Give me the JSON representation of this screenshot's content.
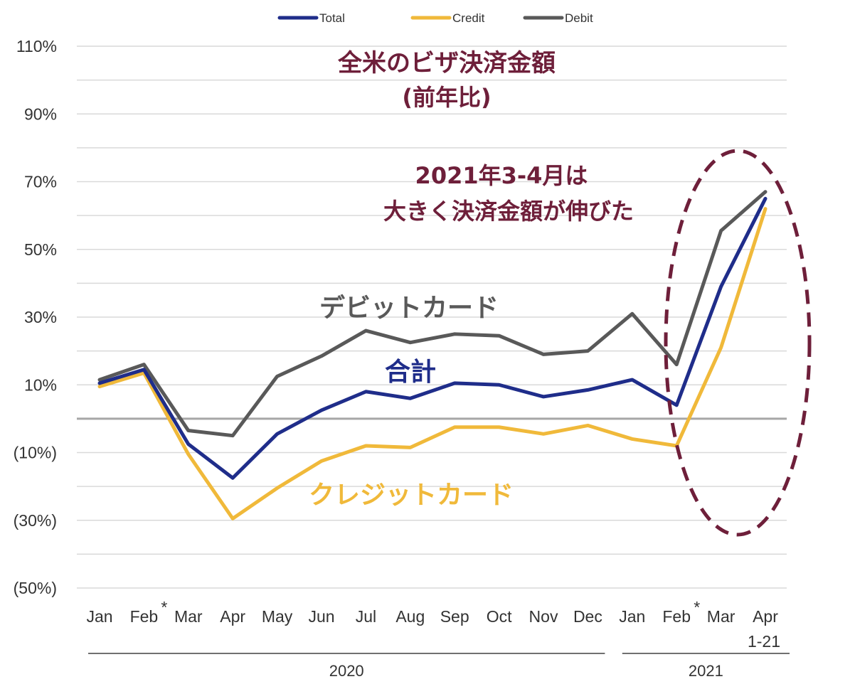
{
  "chart_data": {
    "type": "line",
    "title": "全米のビザ決済金額",
    "subtitle": "(前年比)",
    "annotation": {
      "line1": "2021年3-4月は",
      "line2": "大きく決済金額が伸びた"
    },
    "x": [
      "Jan",
      "Feb",
      "Mar",
      "Apr",
      "May",
      "Jun",
      "Jul",
      "Aug",
      "Sep",
      "Oct",
      "Nov",
      "Dec",
      "Jan",
      "Feb",
      "Mar",
      "Apr"
    ],
    "x_marks": {
      "1": "*",
      "13": "*"
    },
    "x_sublabel": {
      "15": "1-21"
    },
    "groups": [
      {
        "label": "2020",
        "from": 0,
        "to": 11
      },
      {
        "label": "2021",
        "from": 12,
        "to": 15
      }
    ],
    "y_ticks": [
      {
        "value": 110,
        "label": "110%"
      },
      {
        "value": 90,
        "label": "90%"
      },
      {
        "value": 70,
        "label": "70%"
      },
      {
        "value": 50,
        "label": "50%"
      },
      {
        "value": 30,
        "label": "30%"
      },
      {
        "value": 10,
        "label": "10%"
      },
      {
        "value": -10,
        "label": "(10%)"
      },
      {
        "value": -30,
        "label": "(30%)"
      },
      {
        "value": -50,
        "label": "(50%)"
      }
    ],
    "ylim": [
      -50,
      110
    ],
    "grid_step": 10,
    "series": [
      {
        "name": "Total",
        "label": "合計",
        "color": "#1f2d8a",
        "values": [
          10.5,
          14.5,
          -7.5,
          -17.5,
          -4.5,
          2.5,
          8,
          6,
          10.5,
          10,
          6.5,
          8.5,
          11.5,
          4,
          39,
          65
        ]
      },
      {
        "name": "Credit",
        "label": "クレジットカード",
        "color": "#f0b93a",
        "values": [
          9.5,
          13.5,
          -10.5,
          -29.5,
          -20.5,
          -12.5,
          -8,
          -8.5,
          -2.5,
          -2.5,
          -4.5,
          -2,
          -6,
          -8,
          21,
          62
        ]
      },
      {
        "name": "Debit",
        "label": "デビットカード",
        "color": "#595959",
        "values": [
          11.5,
          16,
          -3.5,
          -5,
          12.5,
          18.5,
          26,
          22.5,
          25,
          24.5,
          19,
          20,
          31,
          16,
          55.5,
          67
        ]
      }
    ],
    "legend_position": "top-center"
  }
}
